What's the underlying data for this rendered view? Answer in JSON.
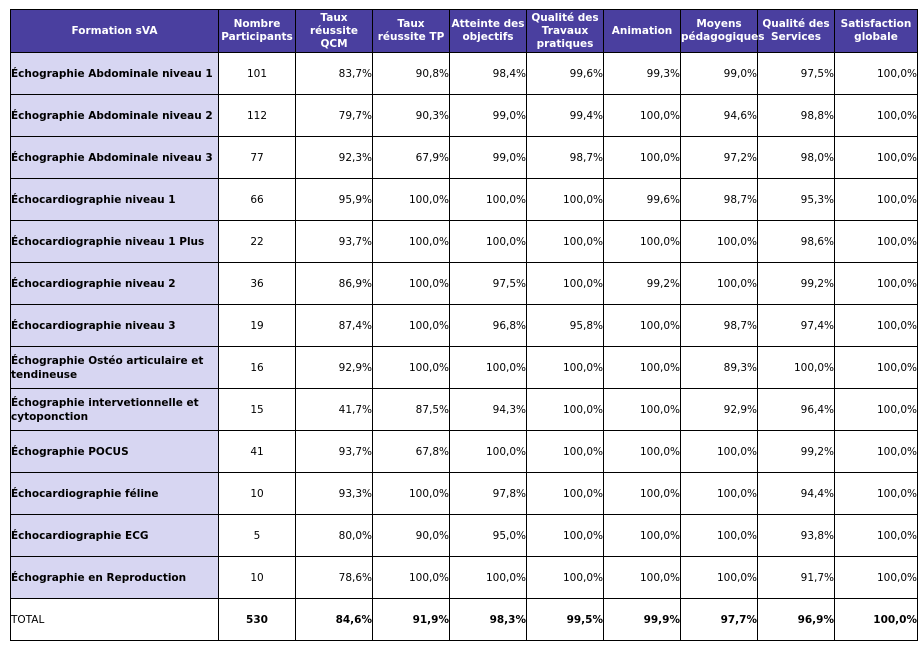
{
  "headers": [
    "Formation sVA",
    "Nombre Participants",
    "Taux réussite QCM",
    "Taux réussite TP",
    "Atteinte des objectifs",
    "Qualité des Travaux pratiques",
    "Animation",
    "Moyens pédagogiques",
    "Qualité des Services",
    "Satisfaction globale"
  ],
  "rows": [
    [
      "Échographie Abdominale niveau 1",
      "101",
      "83,7%",
      "90,8%",
      "98,4%",
      "99,6%",
      "99,3%",
      "99,0%",
      "97,5%",
      "100,0%"
    ],
    [
      "Échographie Abdominale niveau 2",
      "112",
      "79,7%",
      "90,3%",
      "99,0%",
      "99,4%",
      "100,0%",
      "94,6%",
      "98,8%",
      "100,0%"
    ],
    [
      "Échographie Abdominale niveau 3",
      "77",
      "92,3%",
      "67,9%",
      "99,0%",
      "98,7%",
      "100,0%",
      "97,2%",
      "98,0%",
      "100,0%"
    ],
    [
      "Échocardiographie niveau 1",
      "66",
      "95,9%",
      "100,0%",
      "100,0%",
      "100,0%",
      "99,6%",
      "98,7%",
      "95,3%",
      "100,0%"
    ],
    [
      "Échocardiographie niveau 1 Plus",
      "22",
      "93,7%",
      "100,0%",
      "100,0%",
      "100,0%",
      "100,0%",
      "100,0%",
      "98,6%",
      "100,0%"
    ],
    [
      "Échocardiographie niveau 2",
      "36",
      "86,9%",
      "100,0%",
      "97,5%",
      "100,0%",
      "99,2%",
      "100,0%",
      "99,2%",
      "100,0%"
    ],
    [
      "Échocardiographie niveau 3",
      "19",
      "87,4%",
      "100,0%",
      "96,8%",
      "95,8%",
      "100,0%",
      "98,7%",
      "97,4%",
      "100,0%"
    ],
    [
      "Échographie Ostéo articulaire et tendineuse",
      "16",
      "92,9%",
      "100,0%",
      "100,0%",
      "100,0%",
      "100,0%",
      "89,3%",
      "100,0%",
      "100,0%"
    ],
    [
      "Échographie intervetionnelle et cytoponction",
      "15",
      "41,7%",
      "87,5%",
      "94,3%",
      "100,0%",
      "100,0%",
      "92,9%",
      "96,4%",
      "100,0%"
    ],
    [
      "Échographie POCUS",
      "41",
      "93,7%",
      "67,8%",
      "100,0%",
      "100,0%",
      "100,0%",
      "100,0%",
      "99,2%",
      "100,0%"
    ],
    [
      "Échocardiographie féline",
      "10",
      "93,3%",
      "100,0%",
      "97,8%",
      "100,0%",
      "100,0%",
      "100,0%",
      "94,4%",
      "100,0%"
    ],
    [
      "Échocardiographie ECG",
      "5",
      "80,0%",
      "90,0%",
      "95,0%",
      "100,0%",
      "100,0%",
      "100,0%",
      "93,8%",
      "100,0%"
    ],
    [
      "Échographie en Reproduction",
      "10",
      "78,6%",
      "100,0%",
      "100,0%",
      "100,0%",
      "100,0%",
      "100,0%",
      "91,7%",
      "100,0%"
    ]
  ],
  "total": [
    "TOTAL",
    "530",
    "84,6%",
    "91,9%",
    "98,3%",
    "99,5%",
    "99,9%",
    "97,7%",
    "96,9%",
    "100,0%"
  ]
}
